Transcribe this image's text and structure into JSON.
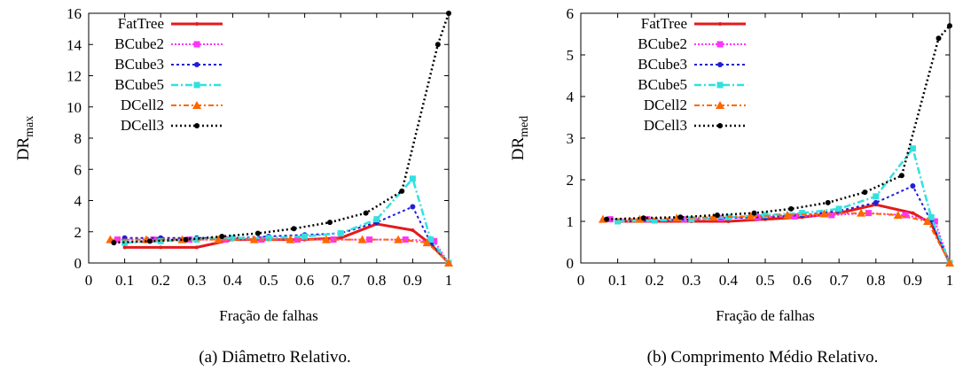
{
  "chart_data": [
    {
      "type": "line",
      "caption": "(a)  Diâmetro Relativo.",
      "xlabel": "Fração de falhas",
      "ylabel_main": "DR",
      "ylabel_sub": "max",
      "xlim": [
        0,
        1
      ],
      "ylim": [
        0,
        16
      ],
      "xticks": [
        0,
        0.1,
        0.2,
        0.3,
        0.4,
        0.5,
        0.6,
        0.7,
        0.8,
        0.9,
        1
      ],
      "xtick_labels": [
        "0",
        "0.1",
        "0.2",
        "0.3",
        "0.4",
        "0.5",
        "0.6",
        "0.7",
        "0.8",
        "0.9",
        "1"
      ],
      "yticks": [
        0,
        2,
        4,
        6,
        8,
        10,
        12,
        14,
        16
      ],
      "ytick_labels": [
        "0",
        "2",
        "4",
        "6",
        "8",
        "10",
        "12",
        "14",
        "16"
      ],
      "legend_position": "top-left",
      "grid": false,
      "series": [
        {
          "name": "FatTree",
          "color": "#e41a1c",
          "dash": "",
          "width": 3,
          "marker": "dot",
          "x": [
            0.1,
            0.2,
            0.3,
            0.4,
            0.5,
            0.6,
            0.7,
            0.8,
            0.9,
            0.95,
            1
          ],
          "y": [
            1.0,
            1.0,
            1.0,
            1.5,
            1.5,
            1.5,
            1.6,
            2.5,
            2.1,
            1.2,
            0
          ]
        },
        {
          "name": "BCube2",
          "color": "#ff33ff",
          "dash": "2,2",
          "width": 2,
          "marker": "square",
          "x": [
            0.08,
            0.18,
            0.28,
            0.38,
            0.48,
            0.58,
            0.68,
            0.78,
            0.88,
            0.96,
            1
          ],
          "y": [
            1.5,
            1.5,
            1.5,
            1.5,
            1.5,
            1.5,
            1.5,
            1.5,
            1.5,
            1.4,
            0
          ]
        },
        {
          "name": "BCube3",
          "color": "#1f1fd6",
          "dash": "3,3",
          "width": 2,
          "marker": "circle",
          "x": [
            0.1,
            0.2,
            0.3,
            0.4,
            0.5,
            0.6,
            0.7,
            0.8,
            0.9,
            0.95,
            1
          ],
          "y": [
            1.6,
            1.6,
            1.6,
            1.6,
            1.7,
            1.8,
            1.9,
            2.6,
            3.6,
            1.3,
            0
          ]
        },
        {
          "name": "BCube5",
          "color": "#33e0e0",
          "dash": "8,3,2,3",
          "width": 2.5,
          "marker": "square",
          "x": [
            0.1,
            0.2,
            0.3,
            0.4,
            0.5,
            0.6,
            0.7,
            0.8,
            0.9,
            0.95,
            1
          ],
          "y": [
            1.3,
            1.4,
            1.5,
            1.6,
            1.6,
            1.7,
            1.9,
            2.8,
            5.4,
            1.5,
            0
          ]
        },
        {
          "name": "DCell2",
          "color": "#ff6600",
          "dash": "6,3,2,3",
          "width": 2,
          "marker": "triangle",
          "x": [
            0.06,
            0.16,
            0.26,
            0.36,
            0.46,
            0.56,
            0.66,
            0.76,
            0.86,
            0.94,
            1
          ],
          "y": [
            1.5,
            1.5,
            1.5,
            1.5,
            1.5,
            1.5,
            1.5,
            1.5,
            1.5,
            1.3,
            0
          ]
        },
        {
          "name": "DCell3",
          "color": "#000000",
          "dash": "2,3",
          "width": 2.5,
          "marker": "circle",
          "x": [
            0.07,
            0.17,
            0.27,
            0.37,
            0.47,
            0.57,
            0.67,
            0.77,
            0.87,
            0.97,
            1
          ],
          "y": [
            1.3,
            1.4,
            1.5,
            1.7,
            1.9,
            2.2,
            2.6,
            3.2,
            4.6,
            14.0,
            16.0
          ]
        }
      ]
    },
    {
      "type": "line",
      "caption": "(b)  Comprimento Médio Relativo.",
      "xlabel": "Fração de falhas",
      "ylabel_main": "DR",
      "ylabel_sub": "med",
      "xlim": [
        0,
        1
      ],
      "ylim": [
        0,
        6
      ],
      "xticks": [
        0,
        0.1,
        0.2,
        0.3,
        0.4,
        0.5,
        0.6,
        0.7,
        0.8,
        0.9,
        1
      ],
      "xtick_labels": [
        "0",
        "0.1",
        "0.2",
        "0.3",
        "0.4",
        "0.5",
        "0.6",
        "0.7",
        "0.8",
        "0.9",
        "1"
      ],
      "yticks": [
        0,
        1,
        2,
        3,
        4,
        5,
        6
      ],
      "ytick_labels": [
        "0",
        "1",
        "2",
        "3",
        "4",
        "5",
        "6"
      ],
      "legend_position": "top-left",
      "grid": false,
      "series": [
        {
          "name": "FatTree",
          "color": "#e41a1c",
          "dash": "",
          "width": 3,
          "marker": "dot",
          "x": [
            0.1,
            0.2,
            0.3,
            0.4,
            0.5,
            0.6,
            0.7,
            0.8,
            0.9,
            0.95,
            1
          ],
          "y": [
            1.0,
            1.0,
            1.0,
            1.0,
            1.05,
            1.1,
            1.2,
            1.4,
            1.2,
            0.95,
            0
          ]
        },
        {
          "name": "BCube2",
          "color": "#ff33ff",
          "dash": "2,2",
          "width": 2,
          "marker": "square",
          "x": [
            0.08,
            0.18,
            0.28,
            0.38,
            0.48,
            0.58,
            0.68,
            0.78,
            0.88,
            0.96,
            1
          ],
          "y": [
            1.05,
            1.05,
            1.05,
            1.08,
            1.1,
            1.12,
            1.15,
            1.2,
            1.15,
            1.0,
            0
          ]
        },
        {
          "name": "BCube3",
          "color": "#1f1fd6",
          "dash": "3,3",
          "width": 2,
          "marker": "circle",
          "x": [
            0.1,
            0.2,
            0.3,
            0.4,
            0.5,
            0.6,
            0.7,
            0.8,
            0.9,
            0.95,
            1
          ],
          "y": [
            1.0,
            1.02,
            1.05,
            1.08,
            1.1,
            1.15,
            1.25,
            1.45,
            1.85,
            1.0,
            0
          ]
        },
        {
          "name": "BCube5",
          "color": "#33e0e0",
          "dash": "8,3,2,3",
          "width": 2.5,
          "marker": "square",
          "x": [
            0.1,
            0.2,
            0.3,
            0.4,
            0.5,
            0.6,
            0.7,
            0.8,
            0.9,
            0.95,
            1
          ],
          "y": [
            1.0,
            1.02,
            1.05,
            1.1,
            1.15,
            1.2,
            1.3,
            1.6,
            2.75,
            1.1,
            0
          ]
        },
        {
          "name": "DCell2",
          "color": "#ff6600",
          "dash": "6,3,2,3",
          "width": 2,
          "marker": "triangle",
          "x": [
            0.06,
            0.16,
            0.26,
            0.36,
            0.46,
            0.56,
            0.66,
            0.76,
            0.86,
            0.94,
            1
          ],
          "y": [
            1.05,
            1.05,
            1.08,
            1.1,
            1.12,
            1.15,
            1.18,
            1.2,
            1.15,
            1.0,
            0
          ]
        },
        {
          "name": "DCell3",
          "color": "#000000",
          "dash": "2,3",
          "width": 2.5,
          "marker": "circle",
          "x": [
            0.07,
            0.17,
            0.27,
            0.37,
            0.47,
            0.57,
            0.67,
            0.77,
            0.87,
            0.97,
            1
          ],
          "y": [
            1.05,
            1.08,
            1.1,
            1.15,
            1.2,
            1.3,
            1.45,
            1.7,
            2.1,
            5.4,
            5.7
          ]
        }
      ]
    }
  ]
}
